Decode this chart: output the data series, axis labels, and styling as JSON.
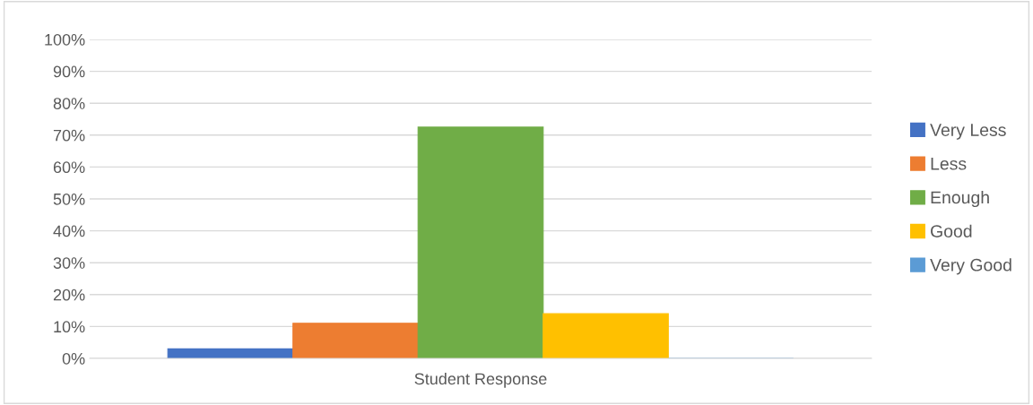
{
  "chart_data": {
    "type": "bar",
    "xlabel": "Student Response",
    "categories": [
      null
    ],
    "series": [
      {
        "name": "Very Less",
        "color": "#4472c4",
        "values": [
          3
        ]
      },
      {
        "name": "Less",
        "color": "#ed7d31",
        "values": [
          11
        ]
      },
      {
        "name": "Enough",
        "color": "#70ad47",
        "values": [
          72.5
        ]
      },
      {
        "name": "Good",
        "color": "#ffc000",
        "values": [
          14
        ]
      },
      {
        "name": "Very Good",
        "color": "#5b9bd5",
        "values": [
          0
        ]
      }
    ],
    "ylim": [
      0,
      100
    ],
    "yticks": [
      {
        "value": 0,
        "label": "0%"
      },
      {
        "value": 10,
        "label": "10%"
      },
      {
        "value": 20,
        "label": "20%"
      },
      {
        "value": 30,
        "label": "30%"
      },
      {
        "value": 40,
        "label": "40%"
      },
      {
        "value": 50,
        "label": "50%"
      },
      {
        "value": 60,
        "label": "60%"
      },
      {
        "value": 70,
        "label": "70%"
      },
      {
        "value": 80,
        "label": "80%"
      },
      {
        "value": 90,
        "label": "90%"
      },
      {
        "value": 100,
        "label": "100%"
      }
    ],
    "grid": "y",
    "legend": "right"
  }
}
